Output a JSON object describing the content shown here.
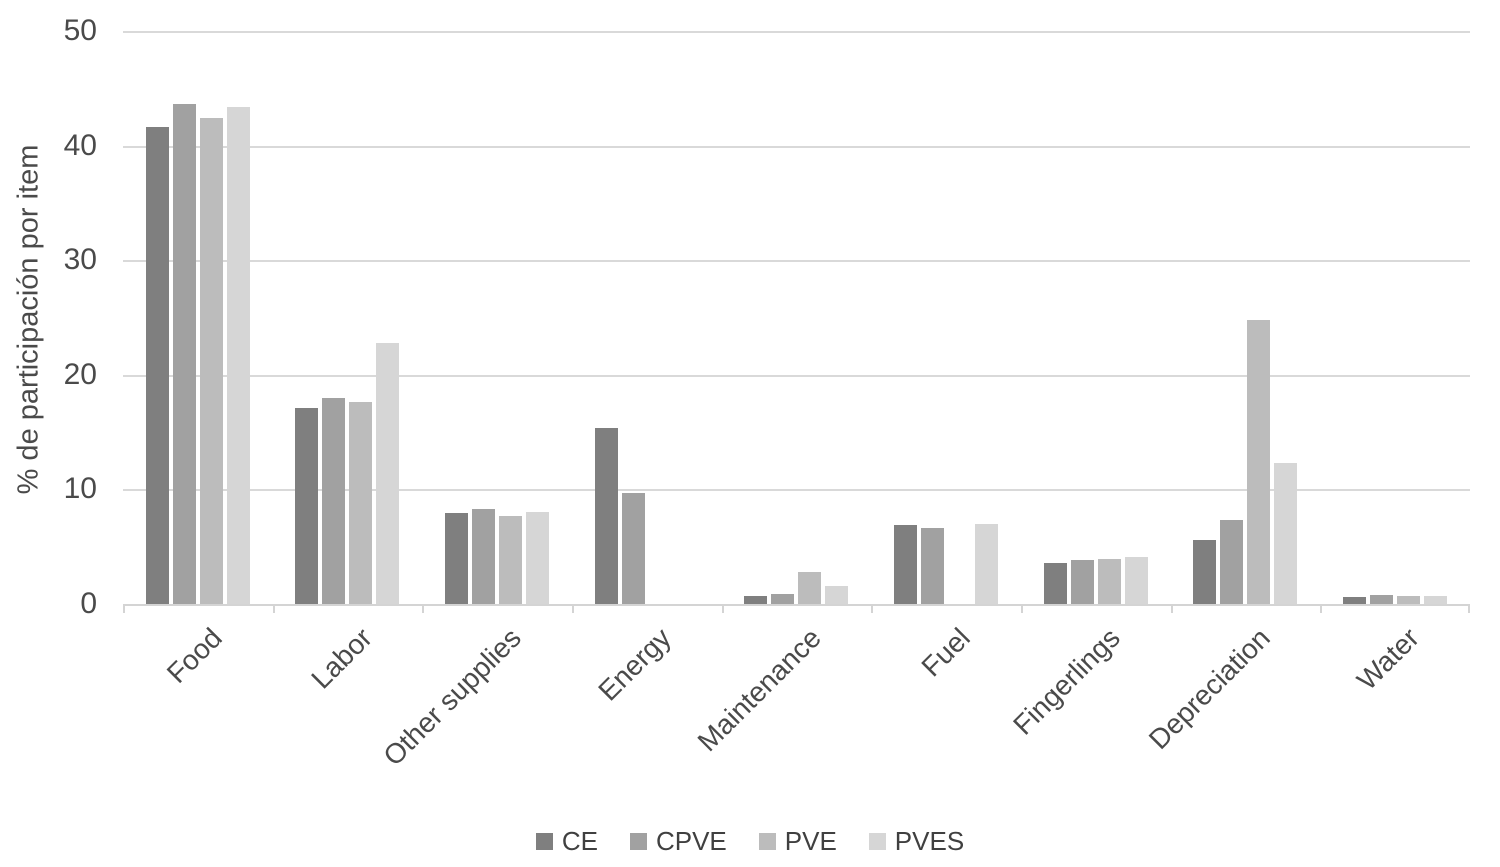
{
  "chart_data": {
    "type": "bar",
    "ylabel": "% de participación por item",
    "xlabel": "",
    "ylim": [
      0,
      50
    ],
    "yticks": [
      0,
      10,
      20,
      30,
      40,
      50
    ],
    "grid": true,
    "legend_position": "bottom",
    "categories": [
      "Food",
      "Labor",
      "Other supplies",
      "Energy",
      "Maintenance",
      "Fuel",
      "Fingerlings",
      "Depreciation",
      "Water"
    ],
    "series": [
      {
        "name": "CE",
        "color": "#7f7f7f",
        "values": [
          41.6,
          17.1,
          7.9,
          15.4,
          0.7,
          6.9,
          3.6,
          5.6,
          0.6
        ]
      },
      {
        "name": "CPVE",
        "color": "#a1a1a1",
        "values": [
          43.6,
          18.0,
          8.3,
          9.7,
          0.9,
          6.6,
          3.8,
          7.3,
          0.8
        ]
      },
      {
        "name": "PVE",
        "color": "#bcbcbc",
        "values": [
          42.4,
          17.6,
          7.7,
          0,
          2.8,
          0,
          3.9,
          24.8,
          0.7
        ]
      },
      {
        "name": "PVES",
        "color": "#d6d6d6",
        "values": [
          43.4,
          22.8,
          8.0,
          0,
          1.6,
          7.0,
          4.1,
          12.3,
          0.7
        ]
      }
    ],
    "colors": {
      "gridline": "#d9d9d9",
      "axis_line": "#d4d4d4",
      "tick_text": "#4a4a4a",
      "legend_text": "#404040",
      "background": "#ffffff"
    }
  }
}
